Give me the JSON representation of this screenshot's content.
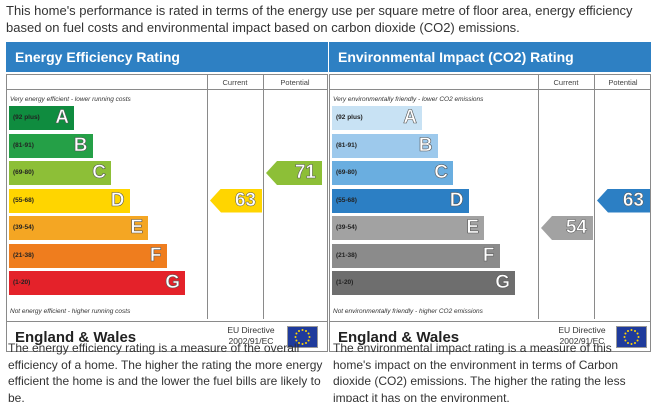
{
  "intro": "This home's performance is rated in terms of the energy use per square metre of floor area, energy efficiency based on fuel costs and environmental impact based on carbon dioxide (CO2) emissions.",
  "chart_data": [
    {
      "type": "bar",
      "title": "Energy Efficiency Rating",
      "columns": [
        "Current",
        "Potential"
      ],
      "top_note": "Very energy efficient - lower running costs",
      "bottom_note": "Not energy efficient - higher running costs",
      "categories": [
        "A",
        "B",
        "C",
        "D",
        "E",
        "F",
        "G"
      ],
      "ranges": [
        "(92 plus)",
        "(81-91)",
        "(69-80)",
        "(55-68)",
        "(39-54)",
        "(21-38)",
        "(1-20)"
      ],
      "band_colors": [
        "#0f8c3f",
        "#25a047",
        "#8dbf37",
        "#ffd500",
        "#f4a623",
        "#ef7d1e",
        "#e4222a"
      ],
      "current": 63,
      "current_band": "D",
      "current_color": "#ffd500",
      "potential": 71,
      "potential_band": "C",
      "potential_color": "#8dbf37",
      "country": "England & Wales",
      "directive": "EU Directive 2002/91/EC"
    },
    {
      "type": "bar",
      "title": "Environmental Impact (CO2) Rating",
      "columns": [
        "Current",
        "Potential"
      ],
      "top_note": "Very environmentally friendly - lower CO2 emissions",
      "bottom_note": "Not environmentally friendly - higher CO2 emissions",
      "categories": [
        "A",
        "B",
        "C",
        "D",
        "E",
        "F",
        "G"
      ],
      "ranges": [
        "(92 plus)",
        "(81-91)",
        "(69-80)",
        "(55-68)",
        "(39-54)",
        "(21-38)",
        "(1-20)"
      ],
      "band_colors": [
        "#c8e2f4",
        "#9dc9ec",
        "#6aaee0",
        "#2c7fc4",
        "#a2a2a2",
        "#8b8b8b",
        "#6e6e6e"
      ],
      "current": 54,
      "current_band": "E",
      "current_color": "#a2a2a2",
      "potential": 63,
      "potential_band": "D",
      "potential_color": "#2c7fc4",
      "country": "England & Wales",
      "directive": "EU Directive 2002/91/EC"
    }
  ],
  "descriptions": {
    "energy": "The energy efficiency rating is a measure of the overall efficiency of a home. The higher the rating the more energy efficient the home is and the lower the fuel bills are likely to be.",
    "environment": "The environmental impact rating is a measure of this home's impact on the environment in terms of Carbon dioxide (CO2) emissions. The higher the rating the less impact it has on the environment."
  }
}
